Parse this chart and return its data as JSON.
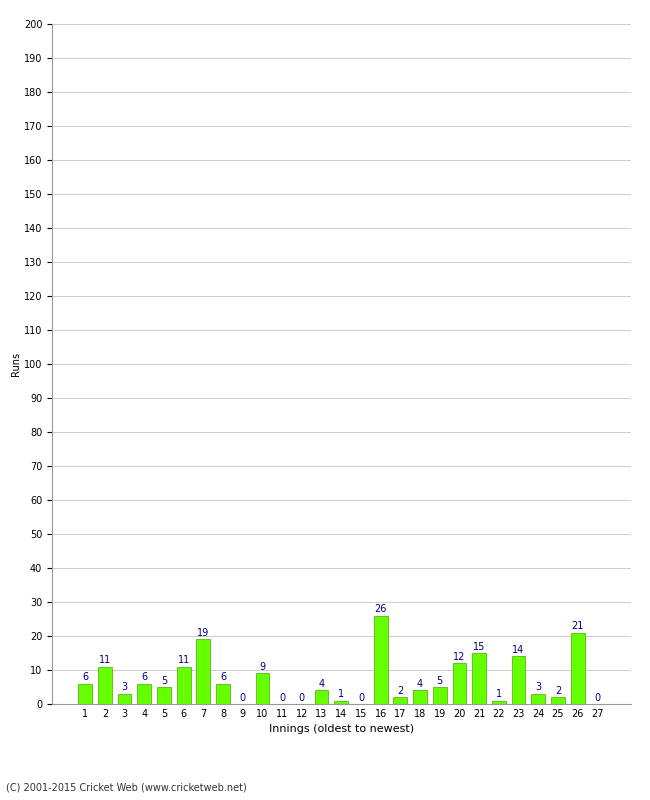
{
  "xlabel": "Innings (oldest to newest)",
  "ylabel": "Runs",
  "categories": [
    1,
    2,
    3,
    4,
    5,
    6,
    7,
    8,
    9,
    10,
    11,
    12,
    13,
    14,
    15,
    16,
    17,
    18,
    19,
    20,
    21,
    22,
    23,
    24,
    25,
    26,
    27
  ],
  "values": [
    6,
    11,
    3,
    6,
    5,
    11,
    19,
    6,
    0,
    9,
    0,
    0,
    4,
    1,
    0,
    26,
    2,
    4,
    5,
    12,
    15,
    1,
    14,
    3,
    2,
    21,
    0
  ],
  "bar_color": "#66ff00",
  "bar_edge_color": "#44aa00",
  "label_color": "#000080",
  "ylim": [
    0,
    200
  ],
  "yticks": [
    0,
    10,
    20,
    30,
    40,
    50,
    60,
    70,
    80,
    90,
    100,
    110,
    120,
    130,
    140,
    150,
    160,
    170,
    180,
    190,
    200
  ],
  "grid_color": "#cccccc",
  "background_color": "#ffffff",
  "footer": "(C) 2001-2015 Cricket Web (www.cricketweb.net)",
  "label_fontsize": 7,
  "axis_tick_fontsize": 7,
  "axis_label_fontsize": 8,
  "ylabel_fontsize": 7
}
